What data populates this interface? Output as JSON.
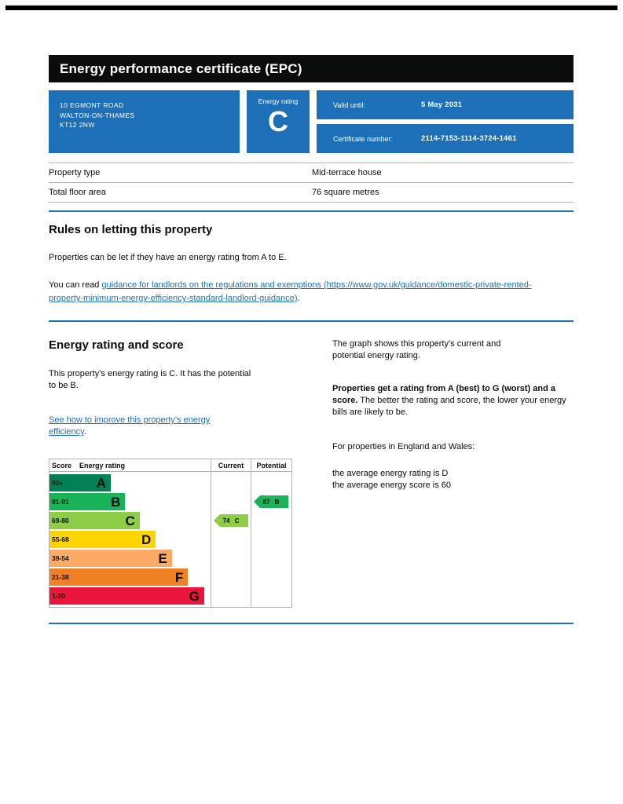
{
  "header": {
    "title": "Energy performance certificate (EPC)"
  },
  "summary": {
    "address_lines": [
      "10 EGMONT ROAD",
      "WALTON-ON-THAMES",
      "KT12 2NW"
    ],
    "energy_rating_label": "Energy rating",
    "energy_rating_value": "C",
    "valid_until_label": "Valid until:",
    "valid_until_value": "5 May 2031",
    "certificate_number_label": "Certificate number:",
    "certificate_number_value": "2114-7153-1114-3724-1461"
  },
  "property_details": {
    "rows": [
      {
        "label": "Property type",
        "value": "Mid-terrace house"
      },
      {
        "label": "Total floor area",
        "value": "76 square metres"
      }
    ]
  },
  "rules_section": {
    "heading": "Rules on letting this property",
    "para1": "Properties can be let if they have an energy rating from A to E.",
    "para2_prefix": "You can read ",
    "para2_link": "guidance for landlords on the regulations and exemptions (https://www.gov.uk/guidance/domestic-private-rented-property-minimum-energy-efficiency-standard-landlord-guidance)",
    "para2_suffix": "."
  },
  "rating_section": {
    "heading": "Energy rating and score",
    "summary_para": "This property’s energy rating is C. It has the potential to be B.",
    "improve_link": "See how to improve this property’s energy efficiency",
    "improve_suffix": ".",
    "graph_para": "The graph shows this property’s current and potential energy rating.",
    "explainer_bold": "Properties get a rating from A (best) to G (worst) and a score.",
    "explainer_rest": " The better the rating and score, the lower your energy bills are likely to be.",
    "regions_para": "For properties in England and Wales:",
    "average_rating_line": "the average energy rating is D",
    "average_score_line": "the average energy score is 60"
  },
  "chart_data": {
    "type": "bar",
    "title": "Energy rating and score",
    "headers": {
      "score": "Score",
      "rating": "Energy rating",
      "current": "Current",
      "potential": "Potential"
    },
    "bands": [
      {
        "score": "92+",
        "letter": "A",
        "color": "#008054",
        "width_pct": 38
      },
      {
        "score": "81-91",
        "letter": "B",
        "color": "#19b459",
        "width_pct": 47
      },
      {
        "score": "69-80",
        "letter": "C",
        "color": "#8dce46",
        "width_pct": 56
      },
      {
        "score": "55-68",
        "letter": "D",
        "color": "#ffd500",
        "width_pct": 66
      },
      {
        "score": "39-54",
        "letter": "E",
        "color": "#fcaa65",
        "width_pct": 76
      },
      {
        "score": "21-38",
        "letter": "F",
        "color": "#ef8023",
        "width_pct": 86
      },
      {
        "score": "1-20",
        "letter": "G",
        "color": "#e9153b",
        "width_pct": 96
      }
    ],
    "current": {
      "score": 74,
      "letter": "C",
      "color": "#8dce46",
      "band_index": 2
    },
    "potential": {
      "score": 87,
      "letter": "B",
      "color": "#19b459",
      "band_index": 1
    }
  },
  "colors": {
    "govuk_blue": "#1d70b8",
    "header_black": "#0b0c0c",
    "border_gray": "#b1b4b6"
  }
}
